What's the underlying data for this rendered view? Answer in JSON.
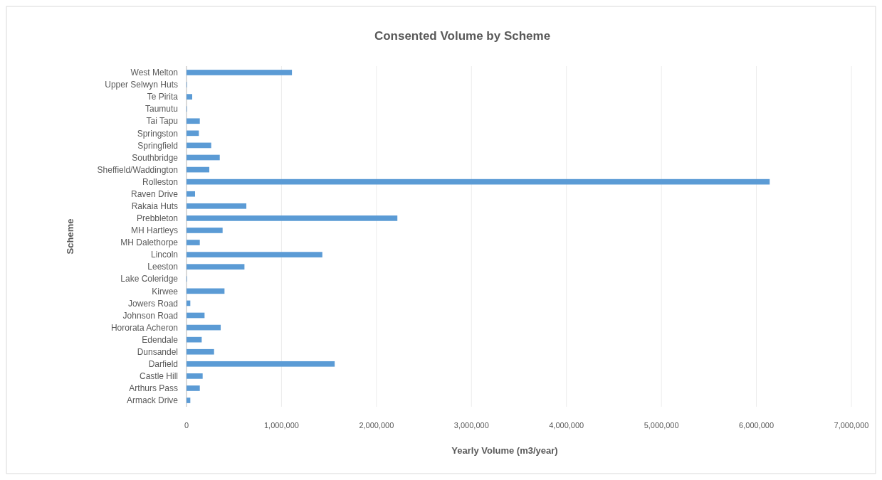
{
  "chart_data": {
    "type": "bar",
    "orientation": "horizontal",
    "title": "Consented Volume by Scheme",
    "xlabel": "Yearly Volume (m3/year)",
    "ylabel": "Scheme",
    "categories": [
      "West Melton",
      "Upper Selwyn Huts",
      "Te Pirita",
      "Taumutu",
      "Tai Tapu",
      "Springston",
      "Springfield",
      "Southbridge",
      "Sheffield/Waddington",
      "Rolleston",
      "Raven Drive",
      "Rakaia Huts",
      "Prebbleton",
      "MH Hartleys",
      "MH Dalethorpe",
      "Lincoln",
      "Leeston",
      "Lake Coleridge",
      "Kirwee",
      "Jowers Road",
      "Johnson Road",
      "Hororata Acheron",
      "Edendale",
      "Dunsandel",
      "Darfield",
      "Castle Hill",
      "Arthurs Pass",
      "Armack Drive"
    ],
    "values": [
      1110000,
      5000,
      60000,
      5000,
      140000,
      130000,
      260000,
      350000,
      240000,
      6140000,
      90000,
      630000,
      2220000,
      380000,
      140000,
      1430000,
      610000,
      5000,
      400000,
      40000,
      190000,
      360000,
      160000,
      290000,
      1560000,
      170000,
      140000,
      40000
    ],
    "color": "#5b9bd5",
    "xlim": [
      0,
      7000000
    ],
    "xticks": [
      {
        "value": 0,
        "label": "0"
      },
      {
        "value": 1000000,
        "label": "1,000,000"
      },
      {
        "value": 2000000,
        "label": "2,000,000"
      },
      {
        "value": 3000000,
        "label": "3,000,000"
      },
      {
        "value": 4000000,
        "label": "4,000,000"
      },
      {
        "value": 5000000,
        "label": "5,000,000"
      },
      {
        "value": 6000000,
        "label": "6,000,000"
      },
      {
        "value": 7000000,
        "label": "7,000,000"
      }
    ],
    "grid": "x"
  }
}
